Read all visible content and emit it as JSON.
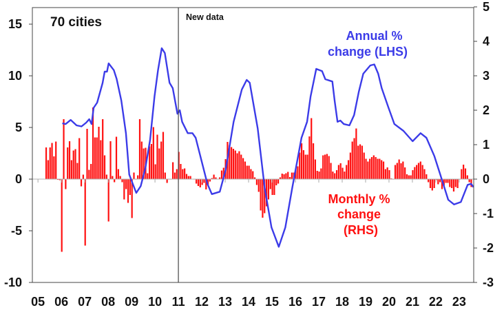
{
  "chart_data": {
    "type": "bar+line",
    "title": "70 cities",
    "annotation_new_data": "New data",
    "new_data_year": 2011,
    "xlim": [
      2004.76,
      2023.62
    ],
    "x_ticks": [
      2005,
      2006,
      2007,
      2008,
      2009,
      2010,
      2011,
      2012,
      2013,
      2014,
      2015,
      2016,
      2017,
      2018,
      2019,
      2020,
      2021,
      2022,
      2023
    ],
    "x_tick_labels": [
      "05",
      "06",
      "07",
      "08",
      "09",
      "10",
      "11",
      "12",
      "13",
      "14",
      "15",
      "16",
      "17",
      "18",
      "19",
      "20",
      "21",
      "22",
      "23"
    ],
    "y_left": {
      "lim": [
        -10,
        16.67
      ],
      "ticks": [
        -10,
        -5,
        0,
        5,
        10,
        15
      ],
      "tick_labels": [
        "-10",
        "-5",
        "0",
        "5",
        "10",
        "15"
      ]
    },
    "y_right": {
      "lim": [
        -3,
        5
      ],
      "ticks": [
        -3,
        -2,
        -1,
        0,
        1,
        2,
        3,
        4,
        5
      ],
      "tick_labels": [
        "-3",
        "-2",
        "-1",
        "0",
        "1",
        "2",
        "3",
        "4",
        "5"
      ]
    },
    "series": [
      {
        "name": "Annual % change (LHS)",
        "label_lines": [
          "Annual %",
          "change (LHS)"
        ],
        "type": "line",
        "axis": "left",
        "color": "#3b3be8",
        "points": [
          [
            2006.04,
            5.4
          ],
          [
            2006.18,
            5.33
          ],
          [
            2006.4,
            5.73
          ],
          [
            2006.65,
            5.2
          ],
          [
            2006.86,
            5.1
          ],
          [
            2007.06,
            5.47
          ],
          [
            2007.19,
            5.8
          ],
          [
            2007.29,
            5.33
          ],
          [
            2007.38,
            6.9
          ],
          [
            2007.53,
            7.4
          ],
          [
            2007.76,
            9.3
          ],
          [
            2007.85,
            10.4
          ],
          [
            2007.95,
            10.4
          ],
          [
            2008.02,
            11.2
          ],
          [
            2008.24,
            10.55
          ],
          [
            2008.36,
            9.7
          ],
          [
            2008.56,
            7.6
          ],
          [
            2008.76,
            4.45
          ],
          [
            2008.9,
            0.45
          ],
          [
            2009.05,
            -0.45
          ],
          [
            2009.2,
            -1.33
          ],
          [
            2009.39,
            -0.67
          ],
          [
            2009.59,
            1.1
          ],
          [
            2009.79,
            3.8
          ],
          [
            2009.98,
            8.0
          ],
          [
            2010.13,
            10.55
          ],
          [
            2010.29,
            12.67
          ],
          [
            2010.42,
            12.2
          ],
          [
            2010.62,
            9.33
          ],
          [
            2010.76,
            8.8
          ],
          [
            2010.96,
            6.33
          ],
          [
            2011.06,
            6.67
          ],
          [
            2011.16,
            5.55
          ],
          [
            2011.4,
            4.45
          ],
          [
            2011.6,
            4.45
          ],
          [
            2011.74,
            4.0
          ],
          [
            2012.04,
            1.33
          ],
          [
            2012.24,
            -0.45
          ],
          [
            2012.43,
            -1.45
          ],
          [
            2012.77,
            -1.22
          ],
          [
            2013.02,
            0.89
          ],
          [
            2013.36,
            5.55
          ],
          [
            2013.71,
            8.67
          ],
          [
            2013.92,
            9.6
          ],
          [
            2014.05,
            9.33
          ],
          [
            2014.39,
            4.9
          ],
          [
            2014.69,
            -0.9
          ],
          [
            2014.98,
            -4.67
          ],
          [
            2015.29,
            -6.55
          ],
          [
            2015.57,
            -4.67
          ],
          [
            2015.86,
            -0.9
          ],
          [
            2016.26,
            4.0
          ],
          [
            2016.5,
            5.55
          ],
          [
            2016.65,
            8.0
          ],
          [
            2016.89,
            10.67
          ],
          [
            2017.14,
            10.45
          ],
          [
            2017.28,
            9.67
          ],
          [
            2017.58,
            9.45
          ],
          [
            2017.68,
            7.55
          ],
          [
            2017.8,
            5.55
          ],
          [
            2017.92,
            5.67
          ],
          [
            2018.07,
            5.33
          ],
          [
            2018.31,
            5.2
          ],
          [
            2018.51,
            6.2
          ],
          [
            2018.71,
            8.45
          ],
          [
            2018.9,
            10.2
          ],
          [
            2019.2,
            11.0
          ],
          [
            2019.37,
            11.1
          ],
          [
            2019.54,
            10.2
          ],
          [
            2019.69,
            8.8
          ],
          [
            2019.98,
            6.9
          ],
          [
            2020.23,
            5.33
          ],
          [
            2020.62,
            4.67
          ],
          [
            2021.01,
            3.67
          ],
          [
            2021.35,
            4.45
          ],
          [
            2021.6,
            4.0
          ],
          [
            2021.94,
            2.22
          ],
          [
            2022.19,
            0.45
          ],
          [
            2022.53,
            -2.0
          ],
          [
            2022.78,
            -2.45
          ],
          [
            2023.07,
            -2.22
          ],
          [
            2023.36,
            -0.55
          ],
          [
            2023.51,
            -0.45
          ],
          [
            2023.61,
            -0.78
          ]
        ]
      },
      {
        "name": "Monthly % change (RHS)",
        "label_lines": [
          "Monthly %",
          "change",
          "(RHS)"
        ],
        "type": "bar",
        "axis": "right",
        "color": "#ff1010",
        "start_year": 2005.35,
        "step_years": 0.08333,
        "values": [
          0.92,
          0.55,
          0.92,
          1.05,
          0.66,
          1.09,
          -0.02,
          -0.03,
          -2.11,
          1.74,
          -0.29,
          0.92,
          1.1,
          0.55,
          0.83,
          0.87,
          0.47,
          1.19,
          -0.21,
          0.13,
          -1.93,
          1.46,
          0.27,
          0.44,
          2.08,
          1.21,
          1.21,
          1.52,
          1.13,
          1.74,
          0.69,
          0.13,
          -1.23,
          1.1,
          0.09,
          -0.09,
          1.23,
          0.29,
          0.09,
          -0.09,
          -0.59,
          -0.29,
          -0.69,
          -0.46,
          -1.13,
          0.19,
          0,
          0.11,
          1.74,
          1.09,
          0.89,
          0.91,
          0.17,
          0.95,
          1.02,
          1.51,
          0.43,
          1.29,
          0.89,
          1.09,
          1.37,
          0.19,
          -0.11,
          0,
          0,
          0.49,
          0.19,
          0.29,
          0.79,
          0.44,
          0.29,
          0.31,
          0.15,
          0.09,
          0.09,
          0.01,
          0,
          -0.13,
          -0.2,
          -0.24,
          -0.17,
          -0.11,
          -0.3,
          -0.17,
          -0.07,
          0.03,
          0.13,
          0.05,
          0.01,
          0.05,
          0.25,
          0.33,
          0.58,
          1.08,
          0.98,
          0.93,
          0.88,
          0.83,
          0.75,
          0.81,
          0.71,
          0.61,
          0.51,
          0.39,
          0.39,
          0.29,
          0.23,
          0.05,
          -0.17,
          -0.37,
          -0.91,
          -1.12,
          -0.99,
          -0.79,
          -0.59,
          -0.29,
          -0.46,
          -0.46,
          -0.18,
          -0.13,
          0.05,
          0.16,
          0.14,
          0.17,
          0.21,
          0.06,
          0.19,
          0.19,
          0.29,
          0.37,
          0.77,
          1.04,
          0.84,
          0.71,
          0.71,
          1.24,
          1.77,
          1.04,
          0.57,
          0.24,
          0.22,
          0.31,
          0.69,
          0.71,
          0.73,
          0.67,
          0.47,
          0.22,
          0.17,
          0.26,
          0.41,
          0.46,
          0.33,
          0.22,
          0.41,
          0.55,
          0.77,
          1.09,
          1.19,
          1.47,
          0.97,
          1.01,
          0.97,
          0.77,
          0.59,
          0.51,
          0.59,
          0.64,
          0.69,
          0.64,
          0.59,
          0.59,
          0.55,
          0.51,
          0.29,
          0.34,
          0.26,
          0.02,
          0,
          0.41,
          0.47,
          0.57,
          0.46,
          0.51,
          0.34,
          0.14,
          0.11,
          0.11,
          0.26,
          0.35,
          0.41,
          0.47,
          0.51,
          0.41,
          0.29,
          0.14,
          -0.09,
          -0.26,
          -0.33,
          -0.26,
          -0.03,
          -0.15,
          -0.09,
          -0.29,
          -0.19,
          -0.11,
          -0.11,
          -0.23,
          -0.26,
          -0.36,
          -0.23,
          -0.26,
          0,
          0.29,
          0.42,
          0.31,
          0.11,
          -0.09,
          -0.23
        ]
      }
    ],
    "legend": "inline annotations",
    "grid": false
  }
}
